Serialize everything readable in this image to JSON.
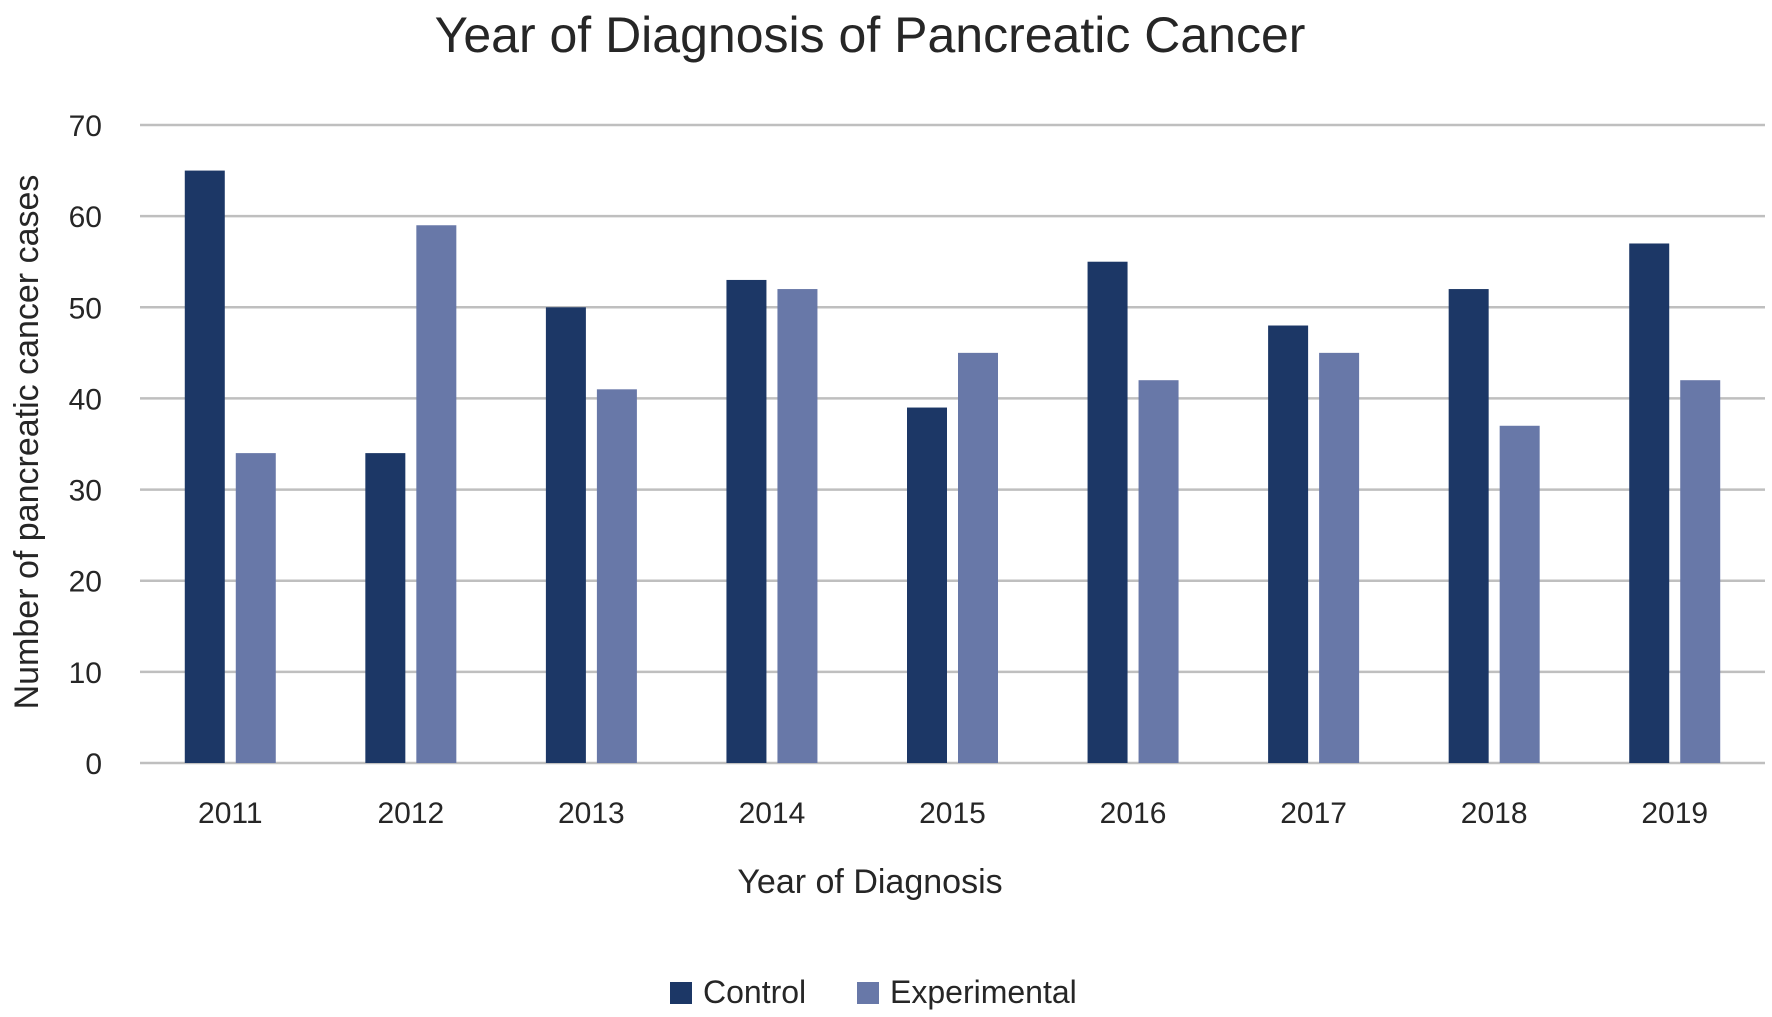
{
  "chart_data": {
    "type": "bar",
    "title": "Year of Diagnosis of Pancreatic Cancer",
    "xlabel": "Year of Diagnosis",
    "ylabel": "Number of pancreatic cancer cases",
    "categories": [
      "2011",
      "2012",
      "2013",
      "2014",
      "2015",
      "2016",
      "2017",
      "2018",
      "2019"
    ],
    "ylim": [
      0,
      70
    ],
    "yticks": [
      0,
      10,
      20,
      30,
      40,
      50,
      60,
      70
    ],
    "grid": true,
    "legend_position": "bottom",
    "series": [
      {
        "name": "Control",
        "color": "#1c3766",
        "values": [
          65,
          34,
          50,
          53,
          39,
          55,
          48,
          52,
          57
        ]
      },
      {
        "name": "Experimental",
        "color": "#6878a8",
        "values": [
          34,
          59,
          41,
          52,
          45,
          42,
          45,
          37,
          42
        ]
      }
    ]
  }
}
